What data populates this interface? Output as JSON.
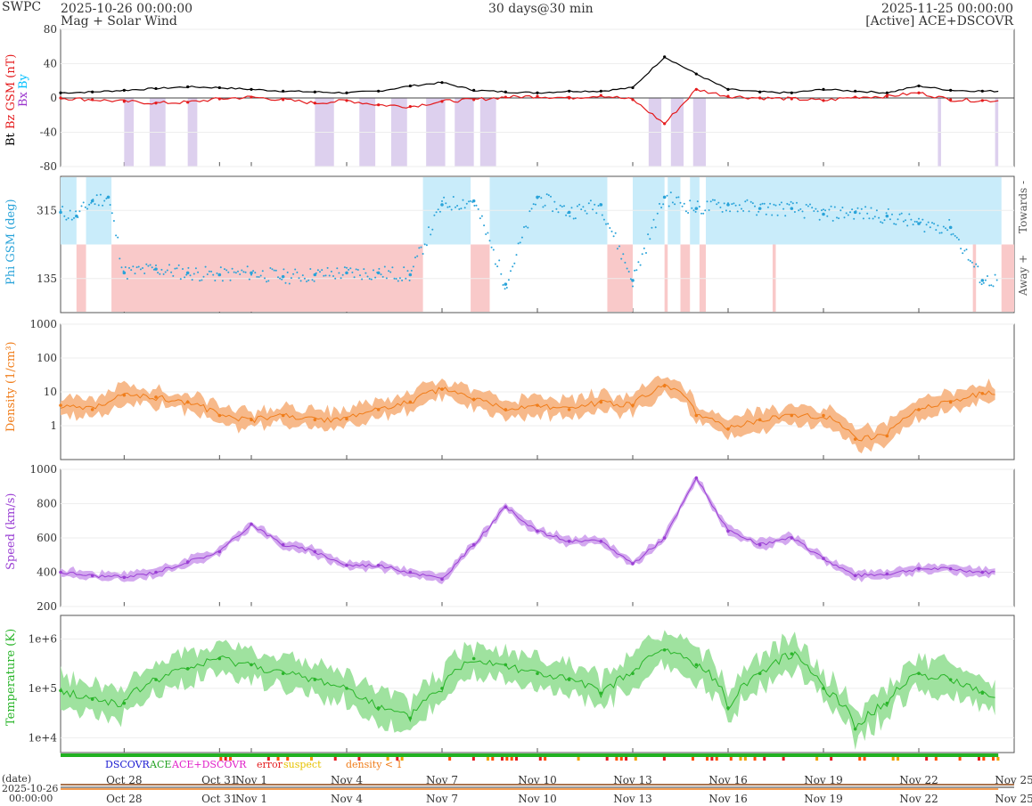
{
  "header": {
    "agency": "SWPC",
    "start_time": "2025-10-26 00:00:00",
    "subtitle": "Mag + Solar Wind",
    "span": "30 days@30 min",
    "end_time": "2025-11-25 00:00:00",
    "source": "[Active] ACE+DSCOVR"
  },
  "legend": {
    "dscovr": "DSCOVR",
    "ace": "ACE",
    "ace_dscovr": "ACE+DSCOVR",
    "error": "error",
    "suspect": "suspect",
    "density": "density < 1"
  },
  "date_axis": {
    "label": "(date)",
    "start_date": "2025-10-26",
    "start_clock": "00:00:00",
    "ticks": [
      "Oct 28",
      "Oct 31",
      "Nov 1",
      "Nov 4",
      "Nov 7",
      "Nov 10",
      "Nov 13",
      "Nov 16",
      "Nov 19",
      "Nov 22",
      "Nov 25"
    ],
    "tick_days": [
      2,
      5,
      6,
      9,
      12,
      15,
      18,
      21,
      24,
      27,
      30
    ]
  },
  "colors": {
    "bt": "#000000",
    "bz": "#e41a1c",
    "bx": "#9932cc",
    "by": "#00bfff",
    "phi": "#29a3d9",
    "phi_towards": "#c9ecfa",
    "phi_away": "#f9c9c9",
    "density": "#f07d1a",
    "density_band": "#f7b98a",
    "speed": "#9a3fd4",
    "speed_band": "#d3a8ef",
    "temperature": "#2ab52a",
    "temperature_band": "#9fe29f",
    "bz_south_shade": "#ddd0ee"
  },
  "chart_data": [
    {
      "type": "line",
      "panel": "mag",
      "ylabel_parts": [
        "Bt",
        "Bz GSM (nT)",
        "Bx",
        "By"
      ],
      "ylim": [
        -80,
        80
      ],
      "yticks": [
        -80,
        -40,
        0,
        40,
        80
      ],
      "x_unit": "day",
      "series": [
        {
          "name": "Bt",
          "x": [
            0,
            1,
            2,
            3,
            4,
            5,
            6,
            7,
            8,
            9,
            10,
            11,
            12,
            13,
            14,
            15,
            16,
            17,
            18,
            19,
            20,
            21,
            22,
            23,
            24,
            25,
            26,
            27,
            28,
            29
          ],
          "values": [
            6,
            7,
            9,
            11,
            13,
            12,
            10,
            8,
            7,
            6,
            8,
            14,
            18,
            9,
            7,
            6,
            8,
            8,
            12,
            48,
            28,
            10,
            7,
            6,
            10,
            8,
            6,
            14,
            9,
            8
          ]
        },
        {
          "name": "Bz GSM",
          "x": [
            0,
            1,
            2,
            3,
            4,
            5,
            6,
            7,
            8,
            9,
            10,
            11,
            12,
            13,
            14,
            15,
            16,
            17,
            18,
            19,
            20,
            21,
            22,
            23,
            24,
            25,
            26,
            27,
            28,
            29
          ],
          "values": [
            0,
            -2,
            -4,
            -6,
            -5,
            -1,
            1,
            -2,
            -6,
            -3,
            -8,
            -10,
            -4,
            -2,
            1,
            2,
            0,
            3,
            -2,
            -30,
            10,
            2,
            0,
            -1,
            -3,
            1,
            2,
            6,
            -2,
            -3
          ]
        }
      ],
      "south_shading_days": [
        2.0,
        2.3,
        2.8,
        3.3,
        4.0,
        4.3,
        8.0,
        8.6,
        9.4,
        9.9,
        10.4,
        10.9,
        11.5,
        12.1,
        12.4,
        13.0,
        13.2,
        13.7,
        18.5,
        18.9,
        19.2,
        19.6,
        19.9,
        20.3,
        27.6,
        27.7,
        29.4,
        29.5
      ]
    },
    {
      "type": "scatter",
      "panel": "phi",
      "ylabel": "Phi GSM (deg)",
      "ylim": [
        45,
        405
      ],
      "yticks": [
        135,
        315
      ],
      "right_labels": [
        "Towards -",
        "Away +"
      ],
      "x_unit": "day",
      "sector_boundary": 225,
      "towards_intervals_days": [
        [
          0,
          0.5
        ],
        [
          0.8,
          1.6
        ],
        [
          11.4,
          12.9
        ],
        [
          13.5,
          17.2
        ],
        [
          18.0,
          19.0
        ],
        [
          19.1,
          19.5
        ],
        [
          19.8,
          20.1
        ],
        [
          20.3,
          29.6
        ]
      ],
      "away_intervals_days": [
        [
          0.5,
          0.8
        ],
        [
          1.6,
          11.4
        ],
        [
          12.9,
          13.5
        ],
        [
          17.2,
          18.0
        ],
        [
          19.0,
          19.1
        ],
        [
          19.5,
          19.8
        ],
        [
          20.1,
          20.3
        ],
        [
          22.4,
          22.5
        ],
        [
          28.7,
          28.8
        ],
        [
          29.6,
          30
        ]
      ],
      "x": [
        0,
        0.5,
        1,
        1.5,
        2,
        3,
        4,
        5,
        6,
        7,
        8,
        9,
        10,
        11,
        12,
        13,
        14,
        15,
        16,
        17,
        18,
        19,
        20,
        21,
        22,
        23,
        24,
        25,
        26,
        27,
        28,
        29
      ],
      "values": [
        310,
        300,
        340,
        350,
        150,
        160,
        150,
        145,
        150,
        140,
        145,
        150,
        150,
        145,
        330,
        340,
        120,
        350,
        310,
        330,
        130,
        350,
        320,
        330,
        320,
        320,
        305,
        310,
        300,
        280,
        270,
        130
      ]
    },
    {
      "type": "line",
      "panel": "density",
      "ylabel": "Density (1/cm³)",
      "yscale": "log",
      "ylim": [
        0.1,
        1000
      ],
      "yticks": [
        1,
        10,
        100,
        1000
      ],
      "x_unit": "day",
      "x": [
        0,
        1,
        2,
        3,
        4,
        5,
        6,
        7,
        8,
        9,
        10,
        11,
        12,
        13,
        14,
        15,
        16,
        17,
        18,
        19,
        20,
        21,
        22,
        23,
        24,
        25,
        26,
        27,
        28,
        29
      ],
      "values": [
        4,
        3,
        8,
        7,
        5,
        2,
        1.5,
        2,
        1.5,
        1.6,
        3,
        5,
        12,
        6,
        3,
        4,
        3,
        5,
        4,
        15,
        2,
        0.8,
        1.5,
        2,
        2,
        0.4,
        0.5,
        3,
        5,
        9
      ]
    },
    {
      "type": "line",
      "panel": "speed",
      "ylabel": "Speed (km/s)",
      "ylim": [
        200,
        1000
      ],
      "yticks": [
        200,
        400,
        600,
        800,
        1000
      ],
      "x_unit": "day",
      "x": [
        0,
        1,
        2,
        3,
        4,
        5,
        6,
        7,
        8,
        9,
        10,
        11,
        12,
        13,
        14,
        15,
        16,
        17,
        18,
        19,
        20,
        21,
        22,
        23,
        24,
        25,
        26,
        27,
        28,
        29
      ],
      "values": [
        400,
        380,
        370,
        400,
        460,
        520,
        680,
        560,
        520,
        440,
        440,
        400,
        360,
        560,
        780,
        640,
        580,
        580,
        450,
        600,
        950,
        640,
        560,
        600,
        480,
        380,
        390,
        420,
        420,
        400
      ]
    },
    {
      "type": "line",
      "panel": "temperature",
      "ylabel": "Temperature (K)",
      "yscale": "log",
      "ylim": [
        5000,
        3000000
      ],
      "ytick_labels": [
        "1e+4",
        "1e+5",
        "1e+6"
      ],
      "x_unit": "day",
      "x": [
        0,
        1,
        2,
        3,
        4,
        5,
        6,
        7,
        8,
        9,
        10,
        11,
        12,
        13,
        14,
        15,
        16,
        17,
        18,
        19,
        20,
        21,
        22,
        23,
        24,
        25,
        26,
        27,
        28,
        29
      ],
      "values": [
        90000,
        60000,
        50000,
        150000,
        250000,
        400000,
        300000,
        200000,
        150000,
        100000,
        40000,
        25000,
        100000,
        400000,
        300000,
        200000,
        150000,
        80000,
        200000,
        600000,
        300000,
        40000,
        200000,
        500000,
        100000,
        15000,
        50000,
        200000,
        150000,
        80000
      ]
    }
  ]
}
